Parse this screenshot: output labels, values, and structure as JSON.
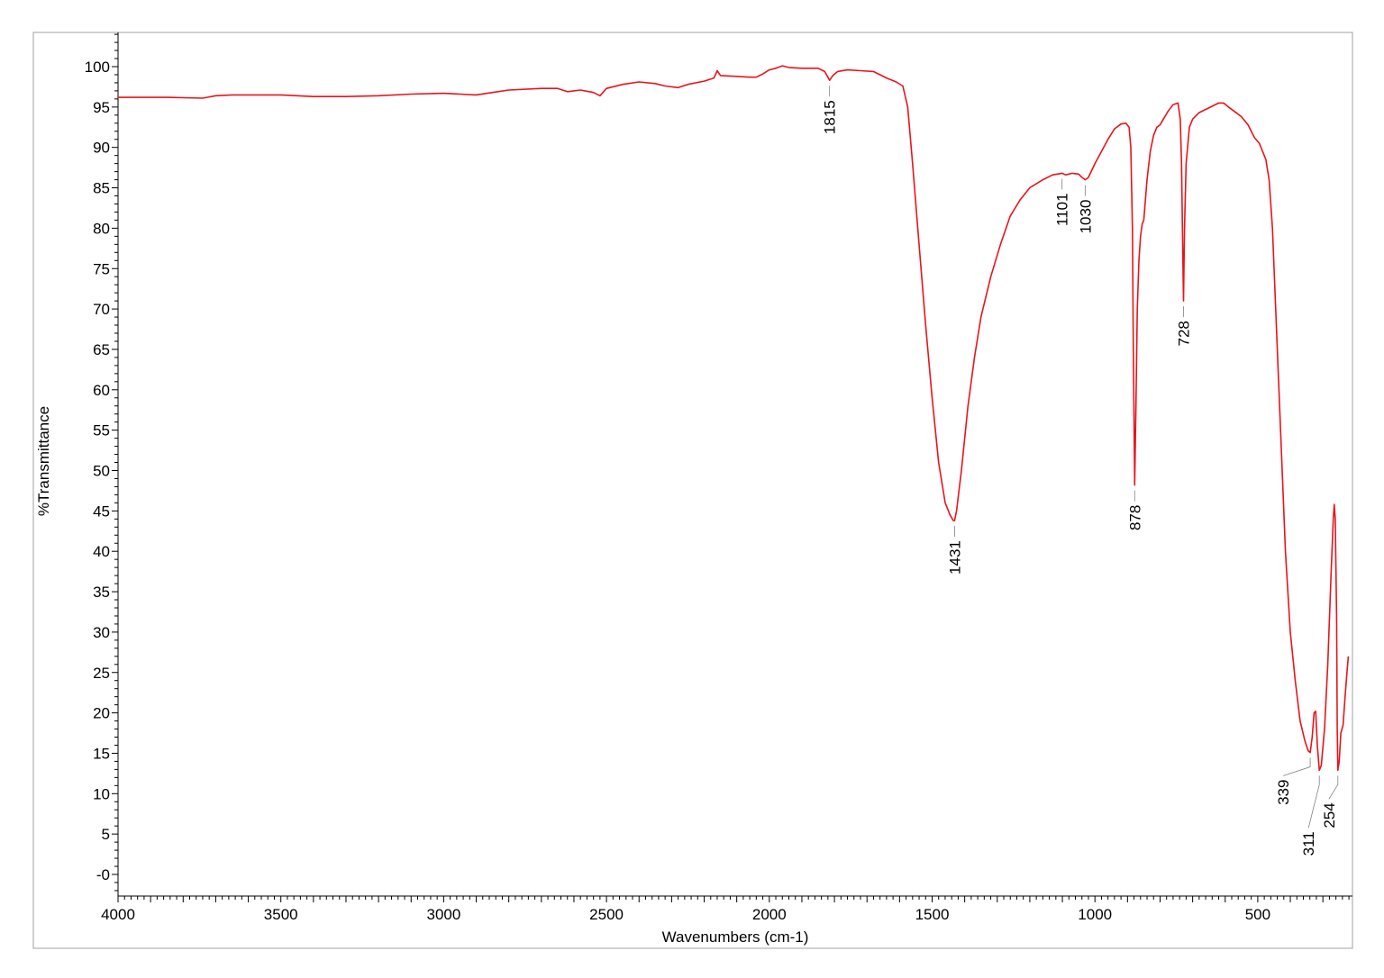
{
  "chart_data": {
    "type": "line",
    "xlabel": "Wavenumbers (cm-1)",
    "ylabel": "%Transmittance",
    "xlim": [
      4000,
      220
    ],
    "ylim": [
      -2,
      104
    ],
    "x_ticks": [
      4000,
      3500,
      3000,
      2500,
      2000,
      1500,
      1000,
      500
    ],
    "x_tick_labels": [
      "4000",
      "3500",
      "3000",
      "2500",
      "2000",
      "1500",
      "1000",
      "500"
    ],
    "y_ticks": [
      100,
      95,
      90,
      85,
      80,
      75,
      70,
      65,
      60,
      55,
      50,
      45,
      40,
      35,
      30,
      25,
      20,
      15,
      10,
      5,
      0
    ],
    "y_tick_labels": [
      "100",
      "95",
      "90",
      "85",
      "80",
      "75",
      "70",
      "65",
      "60",
      "55",
      "50",
      "45",
      "40",
      "35",
      "30",
      "25",
      "20",
      "15",
      "10",
      "5",
      "-0"
    ],
    "grid": false,
    "series": [
      {
        "color": "#e8141c",
        "points": [
          [
            4000,
            96.2
          ],
          [
            3850,
            96.2
          ],
          [
            3740,
            96.1
          ],
          [
            3700,
            96.4
          ],
          [
            3650,
            96.5
          ],
          [
            3600,
            96.5
          ],
          [
            3500,
            96.5
          ],
          [
            3400,
            96.3
          ],
          [
            3300,
            96.3
          ],
          [
            3200,
            96.4
          ],
          [
            3100,
            96.6
          ],
          [
            3000,
            96.7
          ],
          [
            2950,
            96.6
          ],
          [
            2900,
            96.5
          ],
          [
            2850,
            96.8
          ],
          [
            2800,
            97.1
          ],
          [
            2700,
            97.3
          ],
          [
            2650,
            97.3
          ],
          [
            2620,
            96.9
          ],
          [
            2580,
            97.1
          ],
          [
            2540,
            96.8
          ],
          [
            2520,
            96.4
          ],
          [
            2500,
            97.3
          ],
          [
            2450,
            97.8
          ],
          [
            2400,
            98.1
          ],
          [
            2350,
            97.9
          ],
          [
            2320,
            97.6
          ],
          [
            2280,
            97.4
          ],
          [
            2250,
            97.8
          ],
          [
            2200,
            98.2
          ],
          [
            2170,
            98.6
          ],
          [
            2160,
            99.5
          ],
          [
            2150,
            98.9
          ],
          [
            2100,
            98.8
          ],
          [
            2060,
            98.7
          ],
          [
            2040,
            98.7
          ],
          [
            2020,
            99.1
          ],
          [
            2000,
            99.6
          ],
          [
            1980,
            99.8
          ],
          [
            1960,
            100.1
          ],
          [
            1940,
            99.9
          ],
          [
            1900,
            99.8
          ],
          [
            1850,
            99.8
          ],
          [
            1830,
            99.4
          ],
          [
            1820,
            98.7
          ],
          [
            1815,
            98.3
          ],
          [
            1805,
            98.9
          ],
          [
            1790,
            99.4
          ],
          [
            1760,
            99.6
          ],
          [
            1720,
            99.5
          ],
          [
            1680,
            99.4
          ],
          [
            1660,
            99.0
          ],
          [
            1640,
            98.6
          ],
          [
            1610,
            98.1
          ],
          [
            1590,
            97.6
          ],
          [
            1575,
            95.0
          ],
          [
            1560,
            88.0
          ],
          [
            1540,
            78.0
          ],
          [
            1520,
            68.0
          ],
          [
            1500,
            59.0
          ],
          [
            1480,
            51.0
          ],
          [
            1460,
            46.0
          ],
          [
            1445,
            44.5
          ],
          [
            1435,
            43.8
          ],
          [
            1431,
            43.8
          ],
          [
            1425,
            45.0
          ],
          [
            1410,
            50.0
          ],
          [
            1390,
            58.0
          ],
          [
            1370,
            64.0
          ],
          [
            1350,
            69.0
          ],
          [
            1320,
            74.0
          ],
          [
            1290,
            78.0
          ],
          [
            1260,
            81.5
          ],
          [
            1230,
            83.5
          ],
          [
            1200,
            85.0
          ],
          [
            1160,
            86.0
          ],
          [
            1130,
            86.6
          ],
          [
            1101,
            86.8
          ],
          [
            1090,
            86.6
          ],
          [
            1070,
            86.8
          ],
          [
            1050,
            86.7
          ],
          [
            1040,
            86.3
          ],
          [
            1030,
            86.0
          ],
          [
            1020,
            86.3
          ],
          [
            1000,
            88.0
          ],
          [
            980,
            89.5
          ],
          [
            960,
            91.0
          ],
          [
            940,
            92.3
          ],
          [
            920,
            92.9
          ],
          [
            905,
            93.0
          ],
          [
            895,
            92.5
          ],
          [
            890,
            90.0
          ],
          [
            885,
            80.0
          ],
          [
            882,
            65.0
          ],
          [
            878,
            48.2
          ],
          [
            874,
            58.0
          ],
          [
            870,
            70.0
          ],
          [
            865,
            76.0
          ],
          [
            860,
            79.0
          ],
          [
            855,
            80.5
          ],
          [
            850,
            81.0
          ],
          [
            840,
            86.0
          ],
          [
            830,
            89.5
          ],
          [
            820,
            91.5
          ],
          [
            810,
            92.5
          ],
          [
            800,
            92.8
          ],
          [
            790,
            93.5
          ],
          [
            775,
            94.5
          ],
          [
            760,
            95.3
          ],
          [
            745,
            95.5
          ],
          [
            738,
            93.5
          ],
          [
            734,
            88.0
          ],
          [
            730,
            76.0
          ],
          [
            728,
            71.0
          ],
          [
            725,
            80.0
          ],
          [
            720,
            88.0
          ],
          [
            710,
            92.5
          ],
          [
            700,
            93.5
          ],
          [
            680,
            94.3
          ],
          [
            660,
            94.7
          ],
          [
            640,
            95.1
          ],
          [
            620,
            95.5
          ],
          [
            605,
            95.5
          ],
          [
            590,
            95.0
          ],
          [
            570,
            94.4
          ],
          [
            550,
            93.8
          ],
          [
            530,
            92.8
          ],
          [
            510,
            91.2
          ],
          [
            495,
            90.5
          ],
          [
            485,
            89.5
          ],
          [
            475,
            88.5
          ],
          [
            465,
            86.0
          ],
          [
            455,
            80.0
          ],
          [
            445,
            70.0
          ],
          [
            430,
            55.0
          ],
          [
            415,
            40.0
          ],
          [
            400,
            30.0
          ],
          [
            385,
            24.0
          ],
          [
            370,
            19.0
          ],
          [
            355,
            16.5
          ],
          [
            345,
            15.3
          ],
          [
            339,
            15.1
          ],
          [
            333,
            17.0
          ],
          [
            327,
            20.0
          ],
          [
            322,
            20.2
          ],
          [
            317,
            16.0
          ],
          [
            311,
            12.9
          ],
          [
            305,
            13.5
          ],
          [
            295,
            18.0
          ],
          [
            285,
            26.0
          ],
          [
            275,
            37.0
          ],
          [
            268,
            44.0
          ],
          [
            265,
            45.8
          ],
          [
            262,
            44.0
          ],
          [
            258,
            32.0
          ],
          [
            256,
            18.0
          ],
          [
            254,
            12.9
          ],
          [
            250,
            14.0
          ],
          [
            245,
            17.5
          ],
          [
            238,
            18.5
          ],
          [
            232,
            22.0
          ],
          [
            226,
            25.0
          ],
          [
            222,
            27.0
          ]
        ]
      }
    ],
    "annotations": [
      {
        "text": "1815",
        "x": 1815,
        "y": 98.3
      },
      {
        "text": "1431",
        "x": 1431,
        "y": 43.8
      },
      {
        "text": "1101",
        "x": 1101,
        "y": 86.8
      },
      {
        "text": "1030",
        "x": 1030,
        "y": 86.0
      },
      {
        "text": "878",
        "x": 878,
        "y": 48.2
      },
      {
        "text": "728",
        "x": 728,
        "y": 71.0
      },
      {
        "text": "339",
        "x": 339,
        "y": 15.1
      },
      {
        "text": "311",
        "x": 311,
        "y": 12.9
      },
      {
        "text": "254",
        "x": 254,
        "y": 12.9
      }
    ]
  }
}
